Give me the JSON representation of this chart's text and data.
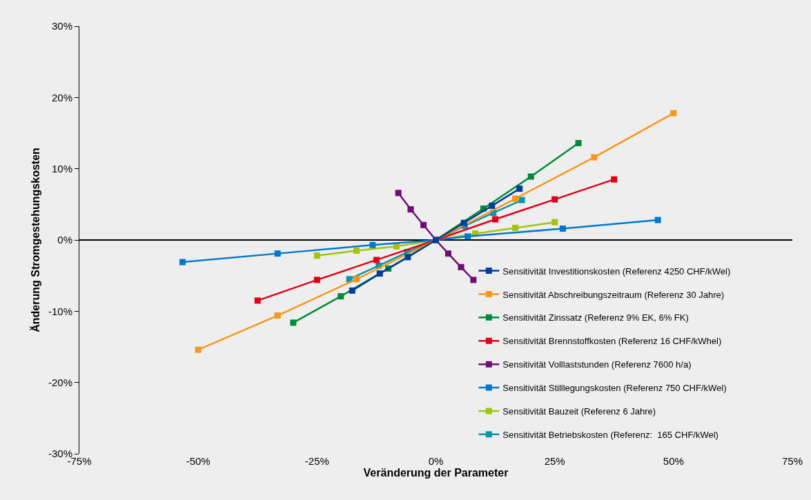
{
  "chart_data": {
    "type": "line",
    "xlabel": "Veränderung der Parameter",
    "ylabel": "Änderung Stromgestehungskosten",
    "xlim": [
      -75,
      75
    ],
    "ylim": [
      -30,
      30
    ],
    "xticks": [
      {
        "value": -75,
        "label": "-75%"
      },
      {
        "value": -50,
        "label": "-50%"
      },
      {
        "value": -25,
        "label": "-25%"
      },
      {
        "value": 0,
        "label": "0%"
      },
      {
        "value": 25,
        "label": "25%"
      },
      {
        "value": 50,
        "label": "50%"
      },
      {
        "value": 75,
        "label": "75%"
      }
    ],
    "yticks": [
      {
        "value": -30,
        "label": "-30%"
      },
      {
        "value": -20,
        "label": "-20%"
      },
      {
        "value": -10,
        "label": "-10%"
      },
      {
        "value": 0,
        "label": "0%"
      },
      {
        "value": 10,
        "label": "10%"
      },
      {
        "value": 20,
        "label": "20%"
      },
      {
        "value": 30,
        "label": "30%"
      }
    ],
    "legend": "bottom right",
    "marker": "square",
    "line_style": "solid",
    "series": [
      {
        "name": "Sensitivität Investitionskosten (Referenz 4250 CHF/kWel)",
        "color": "#003f98",
        "x": [
          -17.6,
          -11.8,
          -5.9,
          0,
          5.9,
          11.8,
          17.6
        ],
        "values": [
          -7.1,
          -4.7,
          -2.4,
          0,
          2.4,
          4.8,
          7.2
        ]
      },
      {
        "name": "Sensitivität Abschreibungszeitraum (Referenz 30 Jahre)",
        "color": "#f7961c",
        "x": [
          -50,
          -33.3,
          -16.7,
          0,
          16.7,
          33.3,
          50
        ],
        "values": [
          -15.4,
          -10.6,
          -5.5,
          0,
          5.8,
          11.6,
          17.8
        ]
      },
      {
        "name": "Sensitivität Zinssatz (Referenz 9% EK, 6% FK)",
        "color": "#00893a",
        "x": [
          -30,
          -20,
          -10,
          0,
          10,
          20,
          30
        ],
        "values": [
          -11.6,
          -7.9,
          -4.0,
          0,
          4.4,
          8.9,
          13.6
        ]
      },
      {
        "name": "Sensitivität Brennstoffkosten (Referenz 16 CHF/kWhel)",
        "color": "#e2001a",
        "x": [
          -37.5,
          -25,
          -12.5,
          0,
          12.5,
          25,
          37.5
        ],
        "values": [
          -8.5,
          -5.6,
          -2.8,
          0,
          2.9,
          5.7,
          8.5
        ]
      },
      {
        "name": "Sensitivität Volllaststunden (Referenz 7600 h/a)",
        "color": "#6e0d73",
        "x": [
          -7.9,
          -5.3,
          -2.6,
          0,
          2.6,
          5.3,
          7.9
        ],
        "values": [
          6.6,
          4.3,
          2.1,
          0,
          -1.9,
          -3.8,
          -5.6
        ]
      },
      {
        "name": "Sensitivität Stilllegungskosten (Referenz 750 CHF/kWel)",
        "color": "#0078cf",
        "x": [
          -53.3,
          -33.3,
          -13.3,
          0,
          6.7,
          26.7,
          46.7
        ],
        "values": [
          -3.1,
          -1.9,
          -0.7,
          0,
          0.5,
          1.6,
          2.8
        ]
      },
      {
        "name": "Sensitivität Bauzeit (Referenz 6 Jahre)",
        "color": "#a2c40f",
        "x": [
          -25,
          -16.7,
          -8.3,
          0,
          8.3,
          16.7,
          25
        ],
        "values": [
          -2.2,
          -1.5,
          -0.9,
          0,
          0.9,
          1.7,
          2.5
        ]
      },
      {
        "name": "Sensitivität Betriebskosten (Referenz:  165 CHF/kWel)",
        "color": "#0896a8",
        "x": [
          -18.2,
          -12.0,
          -6.0,
          0,
          6.1,
          12.1,
          18.1
        ],
        "values": [
          -5.5,
          -3.6,
          -1.7,
          0,
          2.0,
          3.8,
          5.6
        ]
      }
    ]
  }
}
